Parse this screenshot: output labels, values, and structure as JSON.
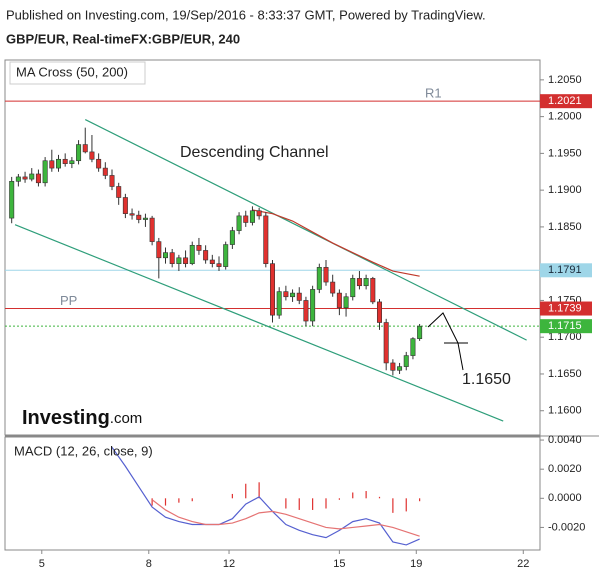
{
  "header": {
    "published": "Published on Investing.com, 19/Sep/2016 - 8:33:37 GMT, Powered by TradingView.",
    "symbol": "GBP/EUR, Real-timeFX:GBP/EUR, 240"
  },
  "logo": {
    "name": "Investing",
    "suffix": ".com"
  },
  "chart_data": [
    {
      "type": "candlestick",
      "title": "MA Cross (50, 200)",
      "x": [
        1,
        2,
        3,
        4,
        5,
        6,
        7,
        8,
        9,
        10,
        11,
        12,
        13,
        14,
        15,
        16,
        17,
        18,
        19,
        20,
        21,
        22,
        23,
        24,
        25,
        26,
        27,
        28,
        29,
        30,
        31,
        32,
        33,
        34,
        35,
        36,
        37,
        38,
        39,
        40,
        41,
        42,
        43,
        44,
        45,
        46,
        47,
        48,
        49,
        50,
        51,
        52,
        53,
        54,
        55,
        56,
        57,
        58,
        59,
        60,
        61,
        62
      ],
      "open": [
        1.1862,
        1.1912,
        1.1918,
        1.1915,
        1.1922,
        1.191,
        1.194,
        1.193,
        1.1942,
        1.1936,
        1.194,
        1.1962,
        1.1952,
        1.1942,
        1.193,
        1.192,
        1.1905,
        1.189,
        1.1868,
        1.1866,
        1.186,
        1.1862,
        1.183,
        1.1808,
        1.1815,
        1.18,
        1.1808,
        1.18,
        1.1825,
        1.1818,
        1.1805,
        1.18,
        1.1796,
        1.1826,
        1.1845,
        1.1865,
        1.1856,
        1.1872,
        1.1865,
        1.18,
        1.173,
        1.1762,
        1.1755,
        1.176,
        1.175,
        1.1722,
        1.1765,
        1.1795,
        1.1775,
        1.176,
        1.174,
        1.1755,
        1.178,
        1.177,
        1.178,
        1.1748,
        1.172,
        1.1665,
        1.1655,
        1.166,
        1.1675,
        1.1698
      ],
      "high": [
        1.1918,
        1.1922,
        1.1925,
        1.193,
        1.1928,
        1.1945,
        1.1955,
        1.1948,
        1.195,
        1.1945,
        1.1968,
        1.1985,
        1.1975,
        1.195,
        1.1938,
        1.1928,
        1.191,
        1.1895,
        1.1875,
        1.1872,
        1.1868,
        1.1865,
        1.1835,
        1.1822,
        1.182,
        1.1812,
        1.1818,
        1.183,
        1.1835,
        1.1825,
        1.1812,
        1.181,
        1.183,
        1.185,
        1.187,
        1.1872,
        1.1878,
        1.1876,
        1.187,
        1.1805,
        1.1768,
        1.177,
        1.1765,
        1.1768,
        1.1755,
        1.177,
        1.18,
        1.1805,
        1.1785,
        1.1765,
        1.176,
        1.1785,
        1.179,
        1.1785,
        1.1782,
        1.1752,
        1.1725,
        1.167,
        1.1665,
        1.168,
        1.17,
        1.1718
      ],
      "low": [
        1.1855,
        1.1905,
        1.191,
        1.1912,
        1.1905,
        1.1905,
        1.1925,
        1.1925,
        1.1932,
        1.193,
        1.1935,
        1.195,
        1.1938,
        1.1925,
        1.1915,
        1.19,
        1.188,
        1.1862,
        1.186,
        1.1855,
        1.185,
        1.1825,
        1.178,
        1.18,
        1.1795,
        1.179,
        1.1795,
        1.1798,
        1.1812,
        1.18,
        1.1795,
        1.179,
        1.1792,
        1.182,
        1.184,
        1.185,
        1.1852,
        1.186,
        1.1795,
        1.172,
        1.1725,
        1.175,
        1.1748,
        1.1745,
        1.1715,
        1.1715,
        1.176,
        1.177,
        1.1755,
        1.173,
        1.1728,
        1.175,
        1.1765,
        1.1765,
        1.1745,
        1.171,
        1.1655,
        1.1648,
        1.165,
        1.1655,
        1.167,
        1.1695
      ],
      "close": [
        1.1912,
        1.1918,
        1.1915,
        1.1922,
        1.191,
        1.194,
        1.193,
        1.1942,
        1.1936,
        1.194,
        1.1962,
        1.1952,
        1.1942,
        1.193,
        1.192,
        1.1905,
        1.189,
        1.1868,
        1.1866,
        1.186,
        1.1862,
        1.183,
        1.1808,
        1.1815,
        1.18,
        1.1808,
        1.18,
        1.1825,
        1.1818,
        1.1805,
        1.18,
        1.1796,
        1.1826,
        1.1845,
        1.1865,
        1.1856,
        1.1872,
        1.1865,
        1.18,
        1.173,
        1.1762,
        1.1755,
        1.176,
        1.175,
        1.1722,
        1.1765,
        1.1795,
        1.1775,
        1.176,
        1.174,
        1.1755,
        1.178,
        1.177,
        1.178,
        1.1748,
        1.172,
        1.1665,
        1.1655,
        1.166,
        1.1675,
        1.1698,
        1.1715
      ],
      "up_color": "#3db53d",
      "down_color": "#e0312f",
      "xlim": [
        0,
        80
      ],
      "xticks": [
        {
          "value": 5.5,
          "label": "5"
        },
        {
          "value": 21.5,
          "label": "8"
        },
        {
          "value": 33.5,
          "label": "12"
        },
        {
          "value": 50,
          "label": "15"
        },
        {
          "value": 61.5,
          "label": "19"
        },
        {
          "value": 77.5,
          "label": "22"
        }
      ],
      "ylim": [
        1.1567,
        1.2077
      ],
      "yticks": [
        {
          "value": 1.205,
          "label": "1.2050"
        },
        {
          "value": 1.2,
          "label": "1.2000"
        },
        {
          "value": 1.195,
          "label": "1.1950"
        },
        {
          "value": 1.19,
          "label": "1.1900"
        },
        {
          "value": 1.185,
          "label": "1.1850"
        },
        {
          "value": 1.175,
          "label": "1.1750"
        },
        {
          "value": 1.17,
          "label": "1.1700"
        },
        {
          "value": 1.165,
          "label": "1.1650"
        },
        {
          "value": 1.16,
          "label": "1.1600"
        }
      ],
      "levels": [
        {
          "name": "R1",
          "value": 1.2021,
          "color": "#d32f2f",
          "label_color": "#ffffff",
          "dash": false
        },
        {
          "value": 1.1791,
          "color": "#9fd6e8",
          "label_color": "#1a2a3a",
          "dash": false
        },
        {
          "name": "PP",
          "value": 1.1739,
          "color": "#d32f2f",
          "label_color": "#ffffff",
          "dash": false
        },
        {
          "value": 1.1715,
          "color": "#3db53d",
          "label_color": "#ffffff",
          "dash": true
        }
      ],
      "ma": {
        "color": "#c0392b",
        "x": [
          37,
          40,
          43,
          46,
          49,
          52,
          55,
          58,
          62
        ],
        "values": [
          1.1873,
          1.1868,
          1.1858,
          1.1843,
          1.1828,
          1.1815,
          1.1802,
          1.179,
          1.1783
        ]
      },
      "channel": {
        "color": "#2e9e7a",
        "lines": [
          {
            "x": [
              12,
              78
            ],
            "values": [
              1.1996,
              1.1696
            ]
          },
          {
            "x": [
              1.5,
              74.5
            ],
            "values": [
              1.1853,
              1.1586
            ]
          }
        ]
      },
      "annotations": [
        "Descending Channel",
        "1.1650"
      ]
    },
    {
      "type": "macd",
      "title": "MACD (12, 26, close, 9)",
      "x": [
        16,
        18,
        20,
        22,
        24,
        26,
        28,
        30,
        32,
        34,
        36,
        38,
        40,
        42,
        44,
        46,
        48,
        50,
        52,
        54,
        56,
        58,
        60,
        62
      ],
      "series": [
        {
          "color": "#5560d0",
          "values": [
            0.0035,
            0.0022,
            0.0008,
            -0.0006,
            -0.0013,
            -0.0016,
            -0.0018,
            -0.0018,
            -0.0018,
            -0.0014,
            -0.0004,
            0.0001,
            -0.0009,
            -0.0018,
            -0.0022,
            -0.0025,
            -0.0027,
            -0.0022,
            -0.0016,
            -0.0014,
            -0.0017,
            -0.003,
            -0.0032,
            -0.0028
          ]
        },
        {
          "color": "#e57373",
          "values": [
            null,
            null,
            null,
            -0.0001,
            -0.0008,
            -0.0013,
            -0.0016,
            -0.0018,
            -0.0018,
            -0.0017,
            -0.0014,
            -0.001,
            -0.0009,
            -0.0011,
            -0.0014,
            -0.0017,
            -0.002,
            -0.0021,
            -0.002,
            -0.0019,
            -0.0018,
            -0.002,
            -0.0023,
            -0.0026
          ]
        }
      ],
      "histogram": {
        "color": "#e0312f",
        "values": [
          null,
          null,
          null,
          -0.0005,
          -0.0005,
          -0.0003,
          -0.0002,
          0,
          0,
          0.0003,
          0.001,
          0.0011,
          0,
          -0.0007,
          -0.0008,
          -0.0008,
          -0.0007,
          -0.0001,
          0.0004,
          0.0005,
          0.0001,
          -0.001,
          -0.0009,
          -0.0002
        ]
      },
      "y2lim": [
        -0.00355,
        0.00421
      ],
      "y2ticks": [
        {
          "value": 0.004,
          "label": "0.0040"
        },
        {
          "value": 0.002,
          "label": "0.0020"
        },
        {
          "value": 0,
          "label": "0.0000"
        },
        {
          "value": -0.002,
          "label": "-0.0020"
        }
      ]
    }
  ]
}
